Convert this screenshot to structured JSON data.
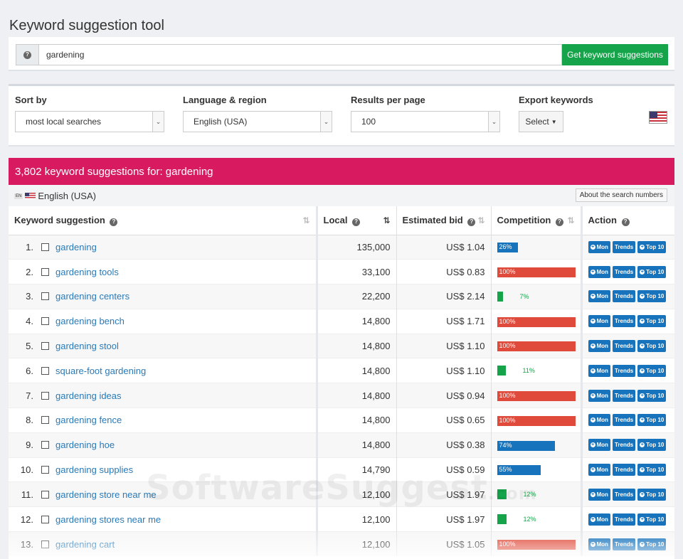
{
  "page_title": "Keyword suggestion tool",
  "search": {
    "value": "gardening",
    "button_label": "Get keyword suggestions"
  },
  "options": {
    "sort_label": "Sort by",
    "sort_value": "most local searches",
    "lang_label": "Language & region",
    "lang_value": "English (USA)",
    "results_label": "Results per page",
    "results_value": "100",
    "export_label": "Export keywords",
    "export_button": "Select"
  },
  "results": {
    "header": "3,802 keyword suggestions for: gardening",
    "language": "English (USA)",
    "lang_code": "EN",
    "about_button": "About the search numbers"
  },
  "table": {
    "columns": {
      "keyword": "Keyword suggestion",
      "local": "Local",
      "bid": "Estimated bid",
      "competition": "Competition",
      "action": "Action"
    },
    "actions": [
      "Mon",
      "Trends",
      "Top 10"
    ],
    "rows": [
      {
        "rank": "1.",
        "keyword": "gardening",
        "local": "135,000",
        "bid": "US$ 1.04",
        "competition": 26
      },
      {
        "rank": "2.",
        "keyword": "gardening tools",
        "local": "33,100",
        "bid": "US$ 0.83",
        "competition": 100
      },
      {
        "rank": "3.",
        "keyword": "gardening centers",
        "local": "22,200",
        "bid": "US$ 2.14",
        "competition": 7
      },
      {
        "rank": "4.",
        "keyword": "gardening bench",
        "local": "14,800",
        "bid": "US$ 1.71",
        "competition": 100
      },
      {
        "rank": "5.",
        "keyword": "gardening stool",
        "local": "14,800",
        "bid": "US$ 1.10",
        "competition": 100
      },
      {
        "rank": "6.",
        "keyword": "square-foot gardening",
        "local": "14,800",
        "bid": "US$ 1.10",
        "competition": 11
      },
      {
        "rank": "7.",
        "keyword": "gardening ideas",
        "local": "14,800",
        "bid": "US$ 0.94",
        "competition": 100
      },
      {
        "rank": "8.",
        "keyword": "gardening fence",
        "local": "14,800",
        "bid": "US$ 0.65",
        "competition": 100
      },
      {
        "rank": "9.",
        "keyword": "gardening hoe",
        "local": "14,800",
        "bid": "US$ 0.38",
        "competition": 74
      },
      {
        "rank": "10.",
        "keyword": "gardening supplies",
        "local": "14,790",
        "bid": "US$ 0.59",
        "competition": 55
      },
      {
        "rank": "11.",
        "keyword": "gardening store near me",
        "local": "12,100",
        "bid": "US$ 1.97",
        "competition": 12
      },
      {
        "rank": "12.",
        "keyword": "gardening stores near me",
        "local": "12,100",
        "bid": "US$ 1.97",
        "competition": 12
      },
      {
        "rank": "13.",
        "keyword": "gardening cart",
        "local": "12,100",
        "bid": "US$ 1.05",
        "competition": 100
      }
    ]
  },
  "colors": {
    "accent": "#d81b60",
    "button_green": "#16a44a",
    "action_blue": "#1773bc",
    "comp_high": "#e04a3a",
    "comp_mid": "#1773bc",
    "comp_low": "#16a44a"
  },
  "watermark": "SoftwareSuggest",
  "watermark_suffix": ".com"
}
